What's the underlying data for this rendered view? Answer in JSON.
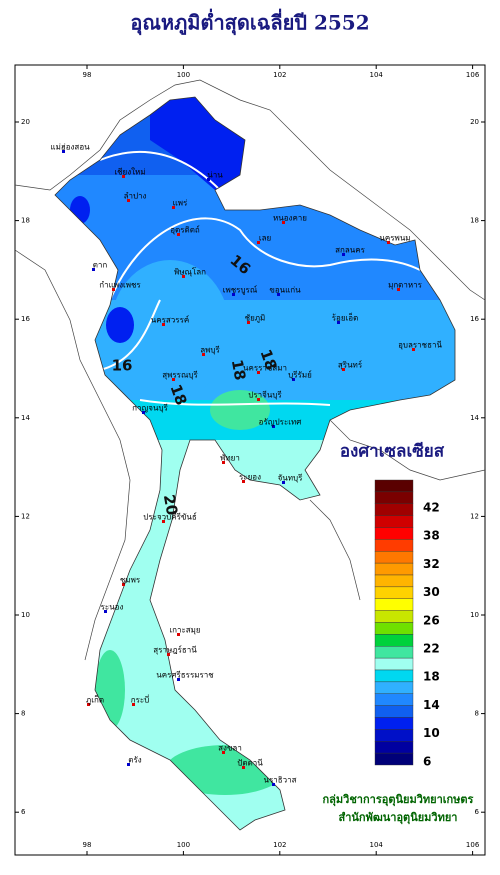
{
  "title": "อุณหภูมิต่ำสุดเฉลี่ยปี 2552",
  "map": {
    "lon_ticks": [
      98,
      100,
      102,
      104,
      106
    ],
    "lat_ticks": [
      6,
      8,
      10,
      12,
      14,
      16,
      18,
      20
    ]
  },
  "legend": {
    "title": "องศาเซลเซียส",
    "labels": [
      42,
      38,
      32,
      30,
      26,
      22,
      18,
      14,
      10,
      6
    ],
    "colors": [
      "#5a0000",
      "#7a0000",
      "#a00000",
      "#d00000",
      "#ff0000",
      "#ff3c00",
      "#ff7800",
      "#ff9a00",
      "#ffb400",
      "#ffd200",
      "#ffff00",
      "#c8e600",
      "#6ee000",
      "#00d23c",
      "#40e6a0",
      "#a0fff0",
      "#00d8f0",
      "#30b0ff",
      "#2088ff",
      "#1060f0",
      "#0020f0",
      "#0010c8",
      "#0000a0",
      "#000078"
    ]
  },
  "contour_labels": [
    "16",
    "16",
    "18",
    "18",
    "18",
    "20"
  ],
  "places": [
    "แม่ฮ่องสอน",
    "เชียงใหม่",
    "ลำปาง",
    "น่าน",
    "แพร่",
    "อุตรดิตถ์",
    "ตาก",
    "พิษณุโลก",
    "กำแพงเพชร",
    "เพชรบูรณ์",
    "เลย",
    "หนองคาย",
    "สกลนคร",
    "นครพนม",
    "มุกดาหาร",
    "ขอนแก่น",
    "ชัยภูมิ",
    "นครสวรรค์",
    "ร้อยเอ็ด",
    "อุบลราชธานี",
    "สุรินทร์",
    "บุรีรัมย์",
    "ลพบุรี",
    "สุพรรณบุรี",
    "กาญจนบุรี",
    "นครราชสีมา",
    "ปราจีนบุรี",
    "อรัญประเทศ",
    "พัทยา",
    "ระยอง",
    "จันทบุรี",
    "ประจวบคีรีขันธ์",
    "ชุมพร",
    "ระนอง",
    "สุราษฎร์ธานี",
    "เกาะสมุย",
    "นครศรีธรรมราช",
    "ภูเก็ต",
    "กระบี่",
    "ตรัง",
    "สงขลา",
    "ปัตตานี",
    "นราธิวาส"
  ],
  "credits": [
    "กลุ่มวิชาการอุตุนิยมวิทยาเกษตร",
    "สำนักพัฒนาอุตุนิยมวิทยา"
  ]
}
